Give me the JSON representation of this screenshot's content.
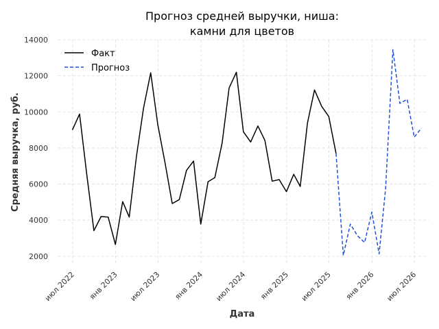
{
  "chart_data": {
    "type": "line",
    "title_lines": [
      "Прогноз средней выручки, ниша:",
      "камни для цветов"
    ],
    "xlabel": "Дата",
    "ylabel": "Средняя выручка, руб.",
    "ylim": [
      1500,
      14000
    ],
    "yticks": [
      2000,
      4000,
      6000,
      8000,
      10000,
      12000,
      14000
    ],
    "xlim": [
      "2022-05-01",
      "2026-08-31"
    ],
    "xticks": [
      {
        "date": "2022-07-01",
        "label": "июл 2022"
      },
      {
        "date": "2023-01-01",
        "label": "янв 2023"
      },
      {
        "date": "2023-07-01",
        "label": "июл 2023"
      },
      {
        "date": "2024-01-01",
        "label": "янв 2024"
      },
      {
        "date": "2024-07-01",
        "label": "июл 2024"
      },
      {
        "date": "2025-01-01",
        "label": "янв 2025"
      },
      {
        "date": "2025-07-01",
        "label": "июл 2025"
      },
      {
        "date": "2026-01-01",
        "label": "янв 2026"
      },
      {
        "date": "2026-07-01",
        "label": "июл 2026"
      }
    ],
    "grid": true,
    "legend_position": "top-left",
    "series": [
      {
        "name": "Факт",
        "color": "#000000",
        "style": "solid",
        "points": [
          [
            "2022-06-30",
            9000
          ],
          [
            "2022-07-31",
            9880
          ],
          [
            "2022-08-31",
            6500
          ],
          [
            "2022-09-30",
            3420
          ],
          [
            "2022-10-31",
            4200
          ],
          [
            "2022-11-30",
            4170
          ],
          [
            "2022-12-31",
            2650
          ],
          [
            "2023-01-31",
            5030
          ],
          [
            "2023-02-28",
            4170
          ],
          [
            "2023-03-31",
            7530
          ],
          [
            "2023-04-30",
            10200
          ],
          [
            "2023-05-31",
            12170
          ],
          [
            "2023-06-30",
            9300
          ],
          [
            "2023-07-31",
            7180
          ],
          [
            "2023-08-31",
            4920
          ],
          [
            "2023-09-30",
            5140
          ],
          [
            "2023-10-31",
            6760
          ],
          [
            "2023-11-30",
            7280
          ],
          [
            "2023-12-31",
            3780
          ],
          [
            "2024-01-31",
            6130
          ],
          [
            "2024-02-29",
            6360
          ],
          [
            "2024-03-31",
            8270
          ],
          [
            "2024-04-30",
            11330
          ],
          [
            "2024-05-31",
            12200
          ],
          [
            "2024-06-30",
            8900
          ],
          [
            "2024-07-31",
            8330
          ],
          [
            "2024-08-31",
            9220
          ],
          [
            "2024-09-30",
            8420
          ],
          [
            "2024-10-31",
            6160
          ],
          [
            "2024-11-30",
            6250
          ],
          [
            "2024-12-31",
            5580
          ],
          [
            "2025-01-31",
            6540
          ],
          [
            "2025-02-28",
            5870
          ],
          [
            "2025-03-31",
            9400
          ],
          [
            "2025-04-30",
            11220
          ],
          [
            "2025-05-31",
            10300
          ],
          [
            "2025-06-30",
            9750
          ],
          [
            "2025-07-31",
            7700
          ]
        ]
      },
      {
        "name": "Прогноз",
        "color": "#1f4fd8",
        "style": "dashed",
        "points": [
          [
            "2025-07-31",
            7700
          ],
          [
            "2025-08-31",
            2050
          ],
          [
            "2025-09-30",
            3780
          ],
          [
            "2025-10-31",
            3130
          ],
          [
            "2025-11-30",
            2760
          ],
          [
            "2025-12-31",
            4450
          ],
          [
            "2026-01-31",
            2130
          ],
          [
            "2026-02-28",
            5770
          ],
          [
            "2026-03-31",
            13450
          ],
          [
            "2026-04-30",
            10470
          ],
          [
            "2026-05-31",
            10700
          ],
          [
            "2026-06-30",
            8600
          ],
          [
            "2026-07-31",
            9100
          ]
        ]
      }
    ]
  }
}
